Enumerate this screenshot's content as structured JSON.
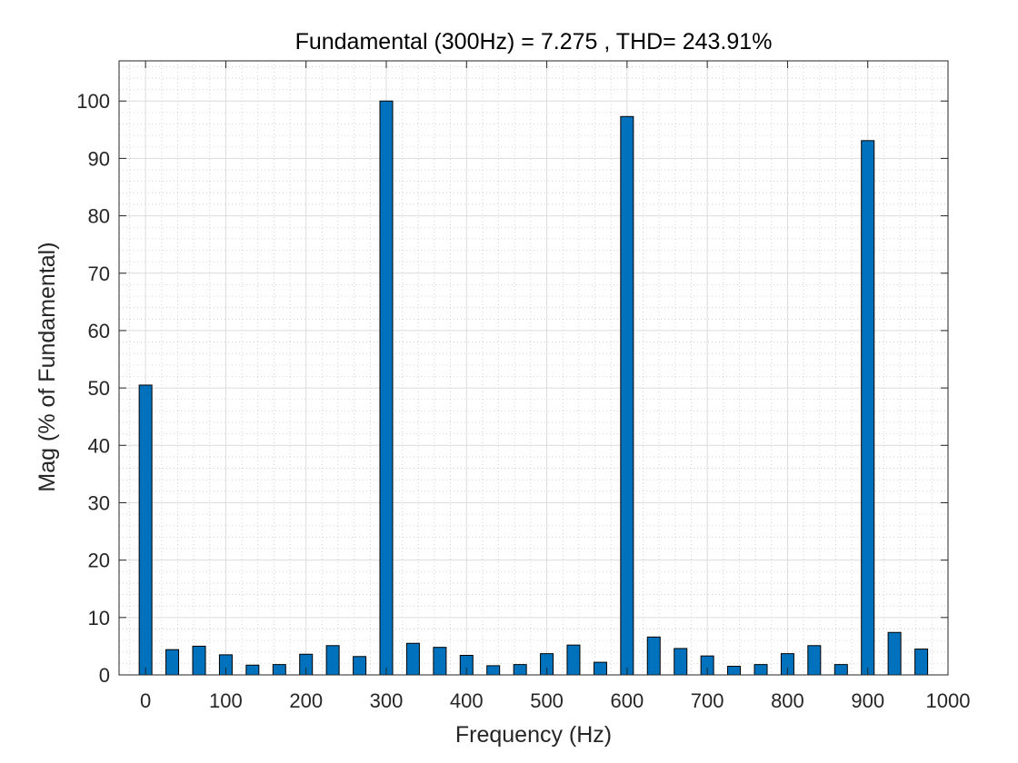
{
  "chart_data": {
    "type": "bar",
    "title": "Fundamental (300Hz) = 7.275 , THD= 243.91%",
    "xlabel": "Frequency (Hz)",
    "ylabel": "Mag (% of Fundamental)",
    "xlim": [
      -33,
      1000
    ],
    "ylim": [
      0,
      107
    ],
    "xticks": [
      0,
      100,
      200,
      300,
      400,
      500,
      600,
      700,
      800,
      900,
      1000
    ],
    "yticks": [
      0,
      10,
      20,
      30,
      40,
      50,
      60,
      70,
      80,
      90,
      100
    ],
    "grid": true,
    "minor_grid": true,
    "bar_color": "#0072BD",
    "bar_edge_color": "#000000",
    "x": [
      0,
      33.3,
      66.7,
      100,
      133.3,
      166.7,
      200,
      233.3,
      266.7,
      300,
      333.3,
      366.7,
      400,
      433.3,
      466.7,
      500,
      533.3,
      566.7,
      600,
      633.3,
      666.7,
      700,
      733.3,
      766.7,
      800,
      833.3,
      866.7,
      900,
      933.3,
      966.7
    ],
    "values": [
      50.5,
      4.4,
      5.0,
      3.5,
      1.7,
      1.8,
      3.6,
      5.1,
      3.2,
      100,
      5.5,
      4.8,
      3.4,
      1.6,
      1.8,
      3.7,
      5.2,
      2.2,
      97.3,
      6.6,
      4.6,
      3.3,
      1.5,
      1.8,
      3.7,
      5.1,
      1.8,
      93.1,
      7.4,
      4.5
    ]
  }
}
